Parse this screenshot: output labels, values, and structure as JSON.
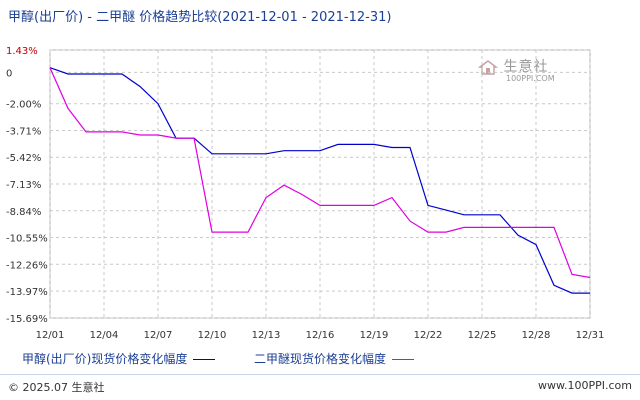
{
  "header": {
    "title": "甲醇(出厂价) - 二甲醚 价格趋势比较(2021-12-01 - 2021-12-31)"
  },
  "watermark": {
    "logo": "生意社",
    "url": "100PPI.COM"
  },
  "legend": {
    "methanol": "甲醇(出厂价)现货价格变化幅度",
    "dme": "二甲醚现货价格变化幅度"
  },
  "footer": {
    "copyright": "© 2025.07 生意社",
    "site": "www.100PPI.com"
  },
  "colors": {
    "methanol": "#0000cc",
    "dme": "#e000e0",
    "grid": "#c9c9c9",
    "top_label": "#c00000"
  },
  "chart_data": {
    "type": "line",
    "title": "甲醇(出厂价) - 二甲醚 价格趋势比较(2021-12-01 - 2021-12-31)",
    "x": [
      "12/01",
      "12/02",
      "12/03",
      "12/04",
      "12/05",
      "12/06",
      "12/07",
      "12/08",
      "12/09",
      "12/10",
      "12/11",
      "12/12",
      "12/13",
      "12/14",
      "12/15",
      "12/16",
      "12/17",
      "12/18",
      "12/19",
      "12/20",
      "12/21",
      "12/22",
      "12/23",
      "12/24",
      "12/25",
      "12/26",
      "12/27",
      "12/28",
      "12/29",
      "12/30",
      "12/31"
    ],
    "x_tick_labels": [
      "12/01",
      "12/04",
      "12/07",
      "12/10",
      "12/13",
      "12/16",
      "12/19",
      "12/22",
      "12/25",
      "12/28",
      "12/31"
    ],
    "y_tick_labels": [
      "1.43%",
      "0",
      "-2.00%",
      "-3.71%",
      "-5.42%",
      "-7.13%",
      "-8.84%",
      "-10.55%",
      "-12.26%",
      "-13.97%",
      "-15.69%"
    ],
    "y_ticks": [
      1.43,
      0,
      -2.0,
      -3.71,
      -5.42,
      -7.13,
      -8.84,
      -10.55,
      -12.26,
      -13.97,
      -15.69
    ],
    "ylim": [
      -15.69,
      1.43
    ],
    "grid": true,
    "legend_position": "bottom",
    "series": [
      {
        "name": "甲醇(出厂价)现货价格变化幅度",
        "color": "#0000cc",
        "values": [
          0.3,
          -0.1,
          -0.1,
          -0.1,
          -0.1,
          -0.9,
          -2.0,
          -4.2,
          -4.2,
          -5.2,
          -5.2,
          -5.2,
          -5.2,
          -5.0,
          -5.0,
          -5.0,
          -4.6,
          -4.6,
          -4.6,
          -4.8,
          -4.8,
          -8.5,
          -8.8,
          -9.1,
          -9.1,
          -9.1,
          -10.4,
          -11.0,
          -13.6,
          -14.1,
          -14.1
        ]
      },
      {
        "name": "二甲醚现货价格变化幅度",
        "color": "#e000e0",
        "values": [
          0.3,
          -2.3,
          -3.8,
          -3.8,
          -3.8,
          -4.0,
          -4.0,
          -4.2,
          -4.2,
          -10.2,
          -10.2,
          -10.2,
          -8.0,
          -7.2,
          -7.8,
          -8.5,
          -8.5,
          -8.5,
          -8.5,
          -8.0,
          -9.5,
          -10.2,
          -10.2,
          -9.9,
          -9.9,
          -9.9,
          -9.9,
          -9.9,
          -9.9,
          -12.9,
          -13.1
        ]
      }
    ]
  }
}
